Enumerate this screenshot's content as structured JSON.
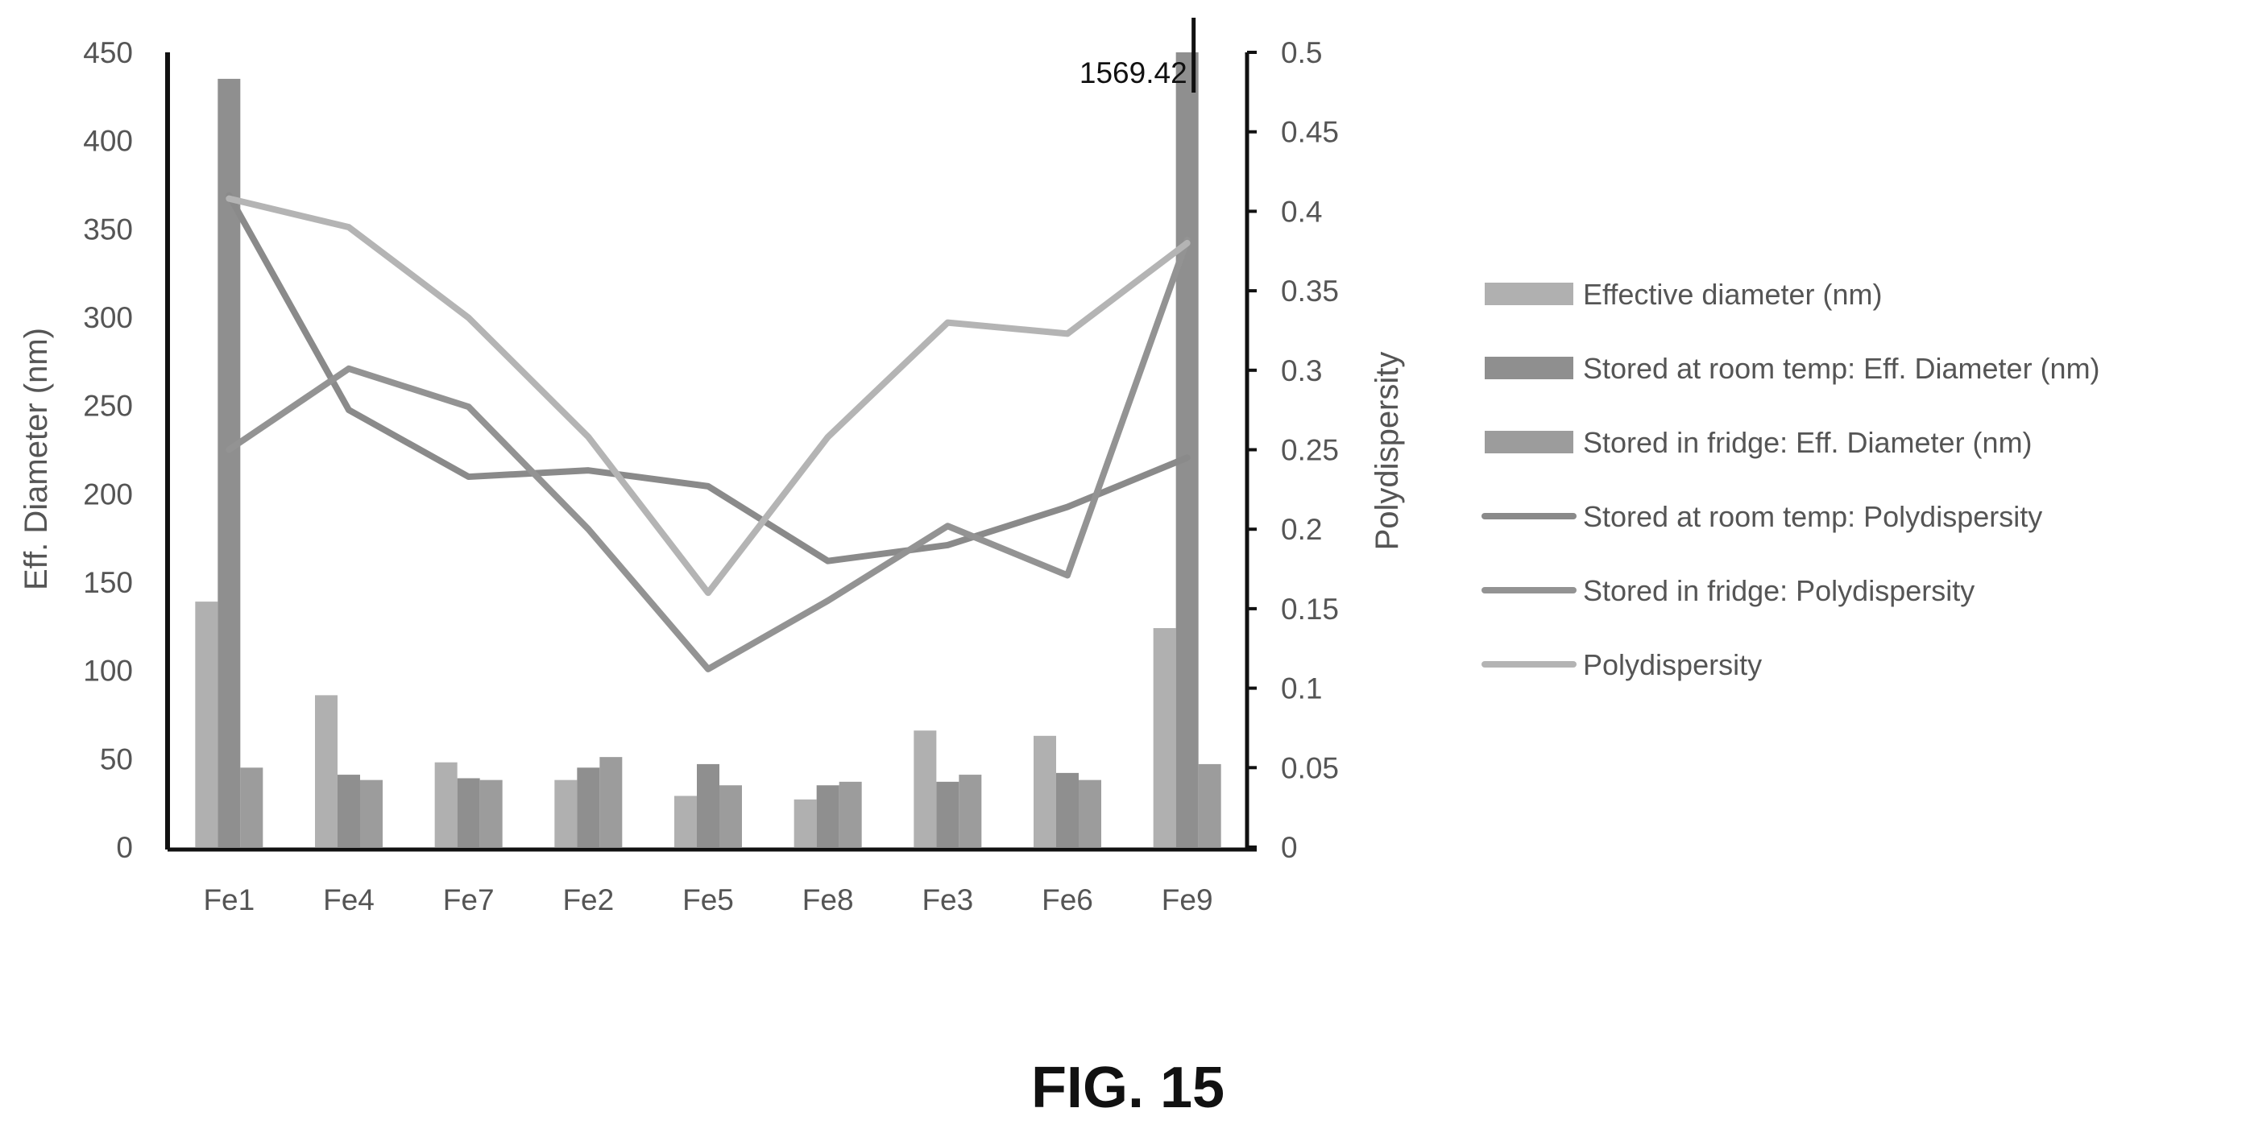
{
  "figure_label": "FIG. 15",
  "chart_data": {
    "type": "bar",
    "categories": [
      "Fe1",
      "Fe4",
      "Fe7",
      "Fe2",
      "Fe5",
      "Fe8",
      "Fe3",
      "Fe6",
      "Fe9"
    ],
    "ylabel": "Eff. Diameter (nm)",
    "y2label": "Polydispersity",
    "ylim": [
      0,
      450
    ],
    "y2lim": [
      0,
      0.5
    ],
    "yticks": [
      0,
      50,
      100,
      150,
      200,
      250,
      300,
      350,
      400,
      450
    ],
    "y2ticks": [
      0,
      0.05,
      0.1,
      0.15,
      0.2,
      0.25,
      0.3,
      0.35,
      0.4,
      0.45,
      0.5
    ],
    "bar_series": [
      {
        "name": "Effective diameter (nm)",
        "color": "#b0b0b0",
        "values": [
          139,
          86,
          48,
          38,
          29,
          27,
          66,
          63,
          124
        ]
      },
      {
        "name": "Stored at room temp: Eff. Diameter (nm)",
        "color": "#8f8f8f",
        "values": [
          435,
          41,
          39,
          45,
          47,
          35,
          37,
          42,
          1569.42
        ]
      },
      {
        "name": "Stored in fridge: Eff. Diameter (nm)",
        "color": "#9c9c9c",
        "values": [
          45,
          38,
          38,
          51,
          35,
          37,
          41,
          38,
          47
        ]
      }
    ],
    "line_series": [
      {
        "name": "Stored at room temp: Polydispersity",
        "color": "#8a8a8a",
        "values": [
          0.41,
          0.275,
          0.233,
          0.237,
          0.227,
          0.18,
          0.19,
          0.214,
          0.245
        ]
      },
      {
        "name": "Stored in fridge: Polydispersity",
        "color": "#939393",
        "values": [
          0.25,
          0.301,
          0.277,
          0.2,
          0.112,
          0.155,
          0.202,
          0.171,
          0.382
        ]
      },
      {
        "name": "Polydispersity",
        "color": "#b4b4b4",
        "values": [
          0.408,
          0.39,
          0.333,
          0.258,
          0.16,
          0.258,
          0.33,
          0.323,
          0.38
        ]
      }
    ],
    "annotations": [
      {
        "text": "1569.42",
        "series": "Stored at room temp: Eff. Diameter (nm)",
        "category": "Fe9"
      }
    ],
    "legend_position": "right",
    "grid": false
  }
}
